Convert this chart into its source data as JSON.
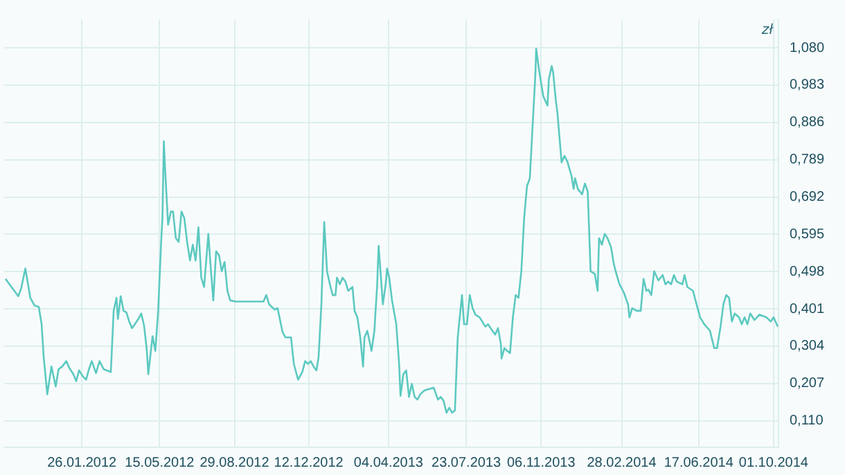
{
  "chart_data": {
    "type": "line",
    "ylabel": "zł",
    "grid": true,
    "legend": false,
    "marker": "none",
    "line_style": "solid",
    "xlim": [
      "2011-10-08",
      "2014-10-08"
    ],
    "xticks": [
      {
        "value": "2012-01-26",
        "label": "26.01.2012"
      },
      {
        "value": "2012-05-15",
        "label": "15.05.2012"
      },
      {
        "value": "2012-08-29",
        "label": "29.08.2012"
      },
      {
        "value": "2012-12-12",
        "label": "12.12.2012"
      },
      {
        "value": "2013-04-04",
        "label": "04.04.2013"
      },
      {
        "value": "2013-07-23",
        "label": "23.07.2013"
      },
      {
        "value": "2013-11-06",
        "label": "06.11.2013"
      },
      {
        "value": "2014-02-28",
        "label": "28.02.2014"
      },
      {
        "value": "2014-06-17",
        "label": "17.06.2014"
      },
      {
        "value": "2014-10-01",
        "label": "01.10.2014"
      }
    ],
    "ylim": [
      0.041,
      1.154
    ],
    "yticks": [
      {
        "value": 0.11,
        "label": "0,110"
      },
      {
        "value": 0.207,
        "label": "0,207"
      },
      {
        "value": 0.304,
        "label": "0,304"
      },
      {
        "value": 0.401,
        "label": "0,401"
      },
      {
        "value": 0.498,
        "label": "0,498"
      },
      {
        "value": 0.595,
        "label": "0,595"
      },
      {
        "value": 0.692,
        "label": "0,692"
      },
      {
        "value": 0.789,
        "label": "0,789"
      },
      {
        "value": 0.886,
        "label": "0,886"
      },
      {
        "value": 0.983,
        "label": "0,983"
      },
      {
        "value": 1.08,
        "label": "1,080"
      }
    ],
    "x": [
      "2011-10-10",
      "2011-10-20",
      "2011-10-28",
      "2011-11-01",
      "2011-11-07",
      "2011-11-14",
      "2011-11-20",
      "2011-11-26",
      "2011-11-30",
      "2011-12-03",
      "2011-12-08",
      "2011-12-14",
      "2011-12-20",
      "2011-12-24",
      "2011-12-29",
      "2012-01-04",
      "2012-01-08",
      "2012-01-14",
      "2012-01-18",
      "2012-01-22",
      "2012-01-28",
      "2012-02-01",
      "2012-02-05",
      "2012-02-09",
      "2012-02-15",
      "2012-02-20",
      "2012-02-26",
      "2012-03-07",
      "2012-03-11",
      "2012-03-15",
      "2012-03-17",
      "2012-03-21",
      "2012-03-25",
      "2012-03-29",
      "2012-04-02",
      "2012-04-06",
      "2012-04-10",
      "2012-04-15",
      "2012-04-19",
      "2012-04-23",
      "2012-04-27",
      "2012-04-29",
      "2012-05-05",
      "2012-05-09",
      "2012-05-13",
      "2012-05-17",
      "2012-05-19",
      "2012-05-21",
      "2012-05-23",
      "2012-05-27",
      "2012-05-31",
      "2012-06-03",
      "2012-06-07",
      "2012-06-11",
      "2012-06-15",
      "2012-06-19",
      "2012-06-23",
      "2012-06-27",
      "2012-07-01",
      "2012-07-05",
      "2012-07-09",
      "2012-07-13",
      "2012-07-17",
      "2012-07-23",
      "2012-07-26",
      "2012-07-30",
      "2012-08-03",
      "2012-08-07",
      "2012-08-11",
      "2012-08-15",
      "2012-08-19",
      "2012-08-23",
      "2012-08-31",
      "2012-10-09",
      "2012-10-13",
      "2012-10-17",
      "2012-10-25",
      "2012-10-29",
      "2012-11-05",
      "2012-11-09",
      "2012-11-17",
      "2012-11-21",
      "2012-11-27",
      "2012-12-03",
      "2012-12-07",
      "2012-12-11",
      "2012-12-15",
      "2012-12-19",
      "2012-12-23",
      "2012-12-26",
      "2012-12-30",
      "2013-01-03",
      "2013-01-07",
      "2013-01-11",
      "2013-01-15",
      "2013-01-19",
      "2013-01-21",
      "2013-01-25",
      "2013-01-29",
      "2013-02-02",
      "2013-02-06",
      "2013-02-12",
      "2013-02-15",
      "2013-02-19",
      "2013-02-23",
      "2013-02-27",
      "2013-03-01",
      "2013-03-05",
      "2013-03-11",
      "2013-03-15",
      "2013-03-19",
      "2013-03-21",
      "2013-03-25",
      "2013-03-27",
      "2013-03-31",
      "2013-04-02",
      "2013-04-05",
      "2013-04-09",
      "2013-04-15",
      "2013-04-19",
      "2013-04-21",
      "2013-04-25",
      "2013-04-29",
      "2013-05-03",
      "2013-05-07",
      "2013-05-11",
      "2013-05-15",
      "2013-05-19",
      "2013-05-25",
      "2013-06-07",
      "2013-06-13",
      "2013-06-17",
      "2013-06-21",
      "2013-06-25",
      "2013-06-29",
      "2013-07-03",
      "2013-07-07",
      "2013-07-11",
      "2013-07-17",
      "2013-07-20",
      "2013-07-24",
      "2013-07-28",
      "2013-08-01",
      "2013-08-05",
      "2013-08-11",
      "2013-08-19",
      "2013-08-23",
      "2013-08-29",
      "2013-09-02",
      "2013-09-06",
      "2013-09-10",
      "2013-09-11",
      "2013-09-15",
      "2013-09-19",
      "2013-09-23",
      "2013-09-27",
      "2013-10-01",
      "2013-10-05",
      "2013-10-09",
      "2013-10-13",
      "2013-10-17",
      "2013-10-21",
      "2013-10-25",
      "2013-10-29",
      "2013-10-30",
      "2013-11-03",
      "2013-11-09",
      "2013-11-15",
      "2013-11-17",
      "2013-11-21",
      "2013-11-23",
      "2013-11-27",
      "2013-11-29",
      "2013-12-05",
      "2013-12-09",
      "2013-12-13",
      "2013-12-19",
      "2013-12-22",
      "2013-12-24",
      "2013-12-28",
      "2014-01-03",
      "2014-01-07",
      "2014-01-11",
      "2014-01-15",
      "2014-01-21",
      "2014-01-25",
      "2014-01-27",
      "2014-01-31",
      "2014-02-04",
      "2014-02-08",
      "2014-02-13",
      "2014-02-17",
      "2014-02-21",
      "2014-02-25",
      "2014-03-03",
      "2014-03-09",
      "2014-03-11",
      "2014-03-15",
      "2014-03-21",
      "2014-03-27",
      "2014-03-31",
      "2014-04-04",
      "2014-04-07",
      "2014-04-11",
      "2014-04-15",
      "2014-04-21",
      "2014-04-27",
      "2014-05-01",
      "2014-05-05",
      "2014-05-09",
      "2014-05-13",
      "2014-05-17",
      "2014-05-25",
      "2014-05-28",
      "2014-06-01",
      "2014-06-09",
      "2014-06-13",
      "2014-06-19",
      "2014-06-25",
      "2014-07-03",
      "2014-07-09",
      "2014-07-13",
      "2014-07-18",
      "2014-07-22",
      "2014-07-26",
      "2014-07-30",
      "2014-08-03",
      "2014-08-07",
      "2014-08-13",
      "2014-08-17",
      "2014-08-21",
      "2014-08-25",
      "2014-08-29",
      "2014-09-04",
      "2014-09-11",
      "2014-09-21",
      "2014-09-27",
      "2014-10-01",
      "2014-10-07"
    ],
    "series": [
      {
        "color": "#5cc9c0",
        "values": [
          0.479,
          0.454,
          0.434,
          0.454,
          0.506,
          0.43,
          0.41,
          0.406,
          0.361,
          0.275,
          0.179,
          0.251,
          0.199,
          0.244,
          0.251,
          0.265,
          0.248,
          0.231,
          0.213,
          0.241,
          0.224,
          0.217,
          0.244,
          0.265,
          0.234,
          0.265,
          0.244,
          0.237,
          0.396,
          0.43,
          0.375,
          0.434,
          0.396,
          0.392,
          0.368,
          0.351,
          0.361,
          0.375,
          0.389,
          0.358,
          0.292,
          0.231,
          0.33,
          0.292,
          0.396,
          0.568,
          0.637,
          0.837,
          0.758,
          0.62,
          0.654,
          0.654,
          0.585,
          0.575,
          0.654,
          0.637,
          0.575,
          0.527,
          0.568,
          0.527,
          0.613,
          0.482,
          0.458,
          0.596,
          0.517,
          0.423,
          0.551,
          0.541,
          0.499,
          0.523,
          0.448,
          0.423,
          0.42,
          0.42,
          0.437,
          0.413,
          0.399,
          0.403,
          0.341,
          0.327,
          0.327,
          0.258,
          0.217,
          0.237,
          0.265,
          0.258,
          0.265,
          0.251,
          0.241,
          0.275,
          0.413,
          0.627,
          0.499,
          0.465,
          0.437,
          0.437,
          0.482,
          0.465,
          0.482,
          0.472,
          0.448,
          0.458,
          0.396,
          0.379,
          0.327,
          0.251,
          0.327,
          0.344,
          0.292,
          0.344,
          0.465,
          0.565,
          0.465,
          0.413,
          0.465,
          0.506,
          0.482,
          0.423,
          0.361,
          0.258,
          0.175,
          0.231,
          0.241,
          0.172,
          0.206,
          0.172,
          0.165,
          0.179,
          0.189,
          0.196,
          0.165,
          0.172,
          0.162,
          0.131,
          0.144,
          0.131,
          0.137,
          0.327,
          0.437,
          0.361,
          0.361,
          0.437,
          0.403,
          0.386,
          0.379,
          0.355,
          0.361,
          0.344,
          0.334,
          0.351,
          0.31,
          0.272,
          0.299,
          0.292,
          0.286,
          0.379,
          0.437,
          0.43,
          0.499,
          0.637,
          0.72,
          0.741,
          0.878,
          1.016,
          1.078,
          1.023,
          0.954,
          0.93,
          0.999,
          1.033,
          1.016,
          0.94,
          0.913,
          0.782,
          0.799,
          0.785,
          0.747,
          0.713,
          0.741,
          0.713,
          0.699,
          0.727,
          0.706,
          0.499,
          0.492,
          0.448,
          0.585,
          0.568,
          0.596,
          0.585,
          0.561,
          0.517,
          0.489,
          0.465,
          0.444,
          0.413,
          0.379,
          0.403,
          0.396,
          0.396,
          0.479,
          0.448,
          0.451,
          0.437,
          0.499,
          0.475,
          0.489,
          0.465,
          0.472,
          0.465,
          0.489,
          0.472,
          0.465,
          0.489,
          0.458,
          0.448,
          0.42,
          0.379,
          0.361,
          0.344,
          0.299,
          0.299,
          0.355,
          0.413,
          0.437,
          0.43,
          0.368,
          0.389,
          0.379,
          0.361,
          0.379,
          0.361,
          0.389,
          0.372,
          0.386,
          0.379,
          0.368,
          0.379,
          0.355
        ]
      }
    ]
  }
}
